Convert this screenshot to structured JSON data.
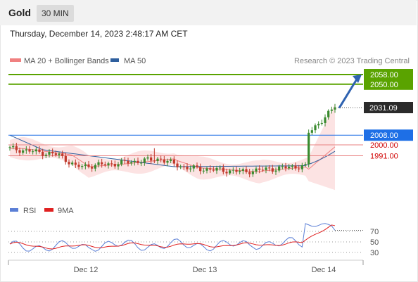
{
  "header": {
    "title": "Gold",
    "timeframe": "30 MIN"
  },
  "datetime": "Thursday, December 14, 2023 2:48:17 AM CET",
  "colors": {
    "accent_green": "#5aa300",
    "accent_blue": "#1e6fe6",
    "bollinger": "#f08080",
    "ma50": "#2e5f9e",
    "candle_up": "#3a8a2e",
    "candle_down": "#c0392b",
    "rsi": "#5b7fd6",
    "rsi_ma": "#e02020"
  },
  "chart_data": [
    {
      "type": "candlestick",
      "legend": [
        "MA 20 + Bollinger Bands",
        "MA 50"
      ],
      "credit": "Research © 2023 Trading Central",
      "ylim": [
        1962,
        2073
      ],
      "x_labels": [
        "Dec 12",
        "Dec 13",
        "Dec 14"
      ],
      "price_tag": "2031.09",
      "levels": [
        {
          "value": 2058.0,
          "label": "2058.00",
          "type": "resistance"
        },
        {
          "value": 2050.0,
          "label": "2050.00",
          "type": "resistance"
        },
        {
          "value": 2008.0,
          "label": "2008.00",
          "type": "pivot"
        },
        {
          "value": 2000.0,
          "label": "2000.00",
          "type": "support"
        },
        {
          "value": 1991.0,
          "label": "1991.00",
          "type": "support"
        }
      ],
      "target_arrow": {
        "from": 2031,
        "to": 2058
      }
    },
    {
      "type": "line",
      "legend": [
        "RSI",
        "9MA"
      ],
      "ylim": [
        10,
        90
      ],
      "ticks": [
        70,
        50,
        30
      ]
    }
  ]
}
